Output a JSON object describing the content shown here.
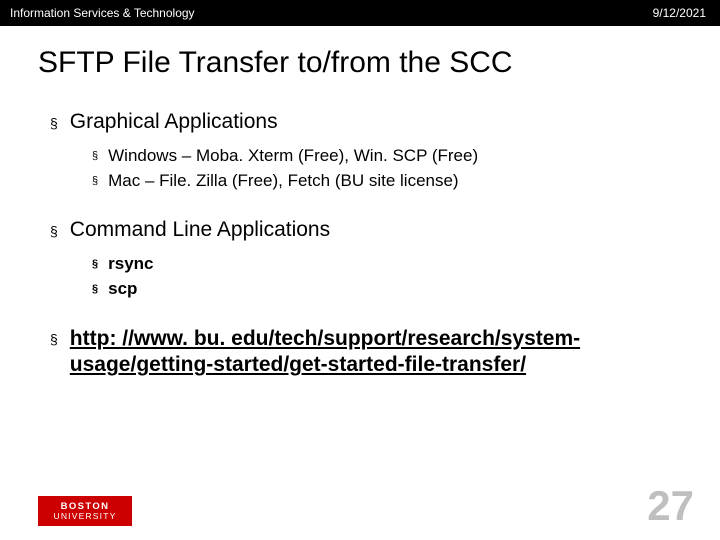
{
  "header": {
    "left": "Information Services & Technology",
    "right": "9/12/2021"
  },
  "title": "SFTP File Transfer to/from the SCC",
  "sections": [
    {
      "heading": "Graphical Applications",
      "sub_bold": false,
      "items": [
        "Windows – Moba. Xterm (Free), Win. SCP (Free)",
        "Mac – File. Zilla (Free), Fetch (BU site license)"
      ]
    },
    {
      "heading": "Command Line Applications",
      "sub_bold": true,
      "items": [
        "rsync",
        "scp"
      ]
    }
  ],
  "link_text": "http: //www. bu. edu/tech/support/research/system-usage/getting-started/get-started-file-transfer/",
  "logo": {
    "line1": "BOSTON",
    "line2": "UNIVERSITY"
  },
  "page_number": "27",
  "colors": {
    "header_bg": "#000000",
    "header_text": "#ffffff",
    "title_color": "#000000",
    "body_color": "#000000",
    "logo_bg": "#cc0000",
    "page_num_color": "#bfbfbf",
    "background": "#ffffff"
  },
  "typography": {
    "header_fontsize": 12,
    "title_fontsize": 30,
    "bullet1_fontsize": 21,
    "bullet2_fontsize": 17,
    "page_num_fontsize": 42
  },
  "bullet_marker": "§"
}
